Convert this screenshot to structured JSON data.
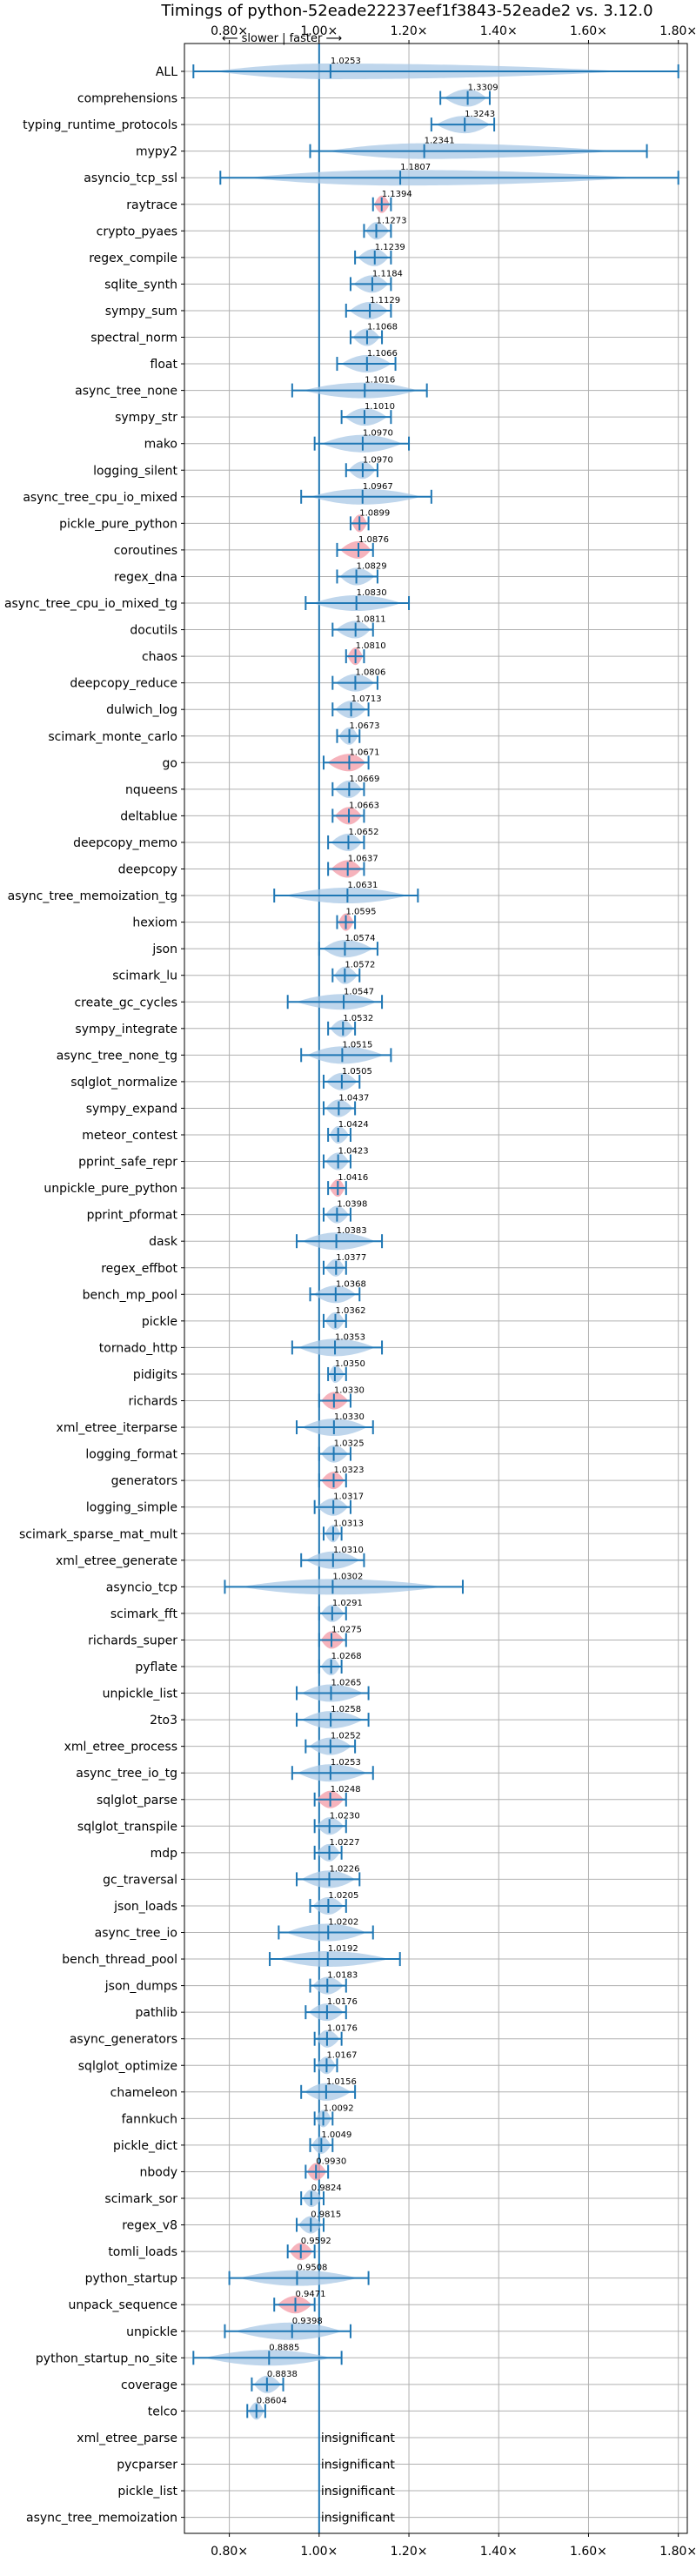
{
  "chart_data": {
    "type": "violin",
    "title": "Timings of python-52eade22237eef1f3843-52eade2 vs. 3.12.0",
    "direction_hint": "⟵ slower | faster ⟶",
    "xlim": [
      0.7,
      1.82
    ],
    "x_ticks": [
      0.8,
      1.0,
      1.2,
      1.4,
      1.6,
      1.8
    ],
    "x_tick_labels": [
      "0.80×",
      "1.00×",
      "1.20×",
      "1.40×",
      "1.60×",
      "1.80×"
    ],
    "reference_line": 1.0,
    "insignificant_label": "insignificant",
    "colors": {
      "violin": "#aac8e6",
      "marker": "#1f77b4",
      "highlight": "#f4a6b0",
      "grid": "#b0b0b0"
    },
    "benchmarks": [
      {
        "name": "ALL",
        "value": 1.0253,
        "low": 0.72,
        "high": 1.8,
        "wide": true
      },
      {
        "name": "comprehensions",
        "value": 1.3309,
        "low": 1.27,
        "high": 1.38
      },
      {
        "name": "typing_runtime_protocols",
        "value": 1.3243,
        "low": 1.25,
        "high": 1.39
      },
      {
        "name": "mypy2",
        "value": 1.2341,
        "low": 0.98,
        "high": 1.73,
        "wide": true
      },
      {
        "name": "asyncio_tcp_ssl",
        "value": 1.1807,
        "low": 0.78,
        "high": 1.8,
        "wide": true
      },
      {
        "name": "raytrace",
        "value": 1.1394,
        "low": 1.12,
        "high": 1.16,
        "hl": true
      },
      {
        "name": "crypto_pyaes",
        "value": 1.1273,
        "low": 1.1,
        "high": 1.16
      },
      {
        "name": "regex_compile",
        "value": 1.1239,
        "low": 1.08,
        "high": 1.16
      },
      {
        "name": "sqlite_synth",
        "value": 1.1184,
        "low": 1.07,
        "high": 1.16
      },
      {
        "name": "sympy_sum",
        "value": 1.1129,
        "low": 1.06,
        "high": 1.16
      },
      {
        "name": "spectral_norm",
        "value": 1.1068,
        "low": 1.07,
        "high": 1.14
      },
      {
        "name": "float",
        "value": 1.1066,
        "low": 1.04,
        "high": 1.17
      },
      {
        "name": "async_tree_none",
        "value": 1.1016,
        "low": 0.94,
        "high": 1.24,
        "wide": true
      },
      {
        "name": "sympy_str",
        "value": 1.101,
        "low": 1.05,
        "high": 1.16
      },
      {
        "name": "mako",
        "value": 1.097,
        "low": 0.99,
        "high": 1.2
      },
      {
        "name": "logging_silent",
        "value": 1.097,
        "low": 1.06,
        "high": 1.13
      },
      {
        "name": "async_tree_cpu_io_mixed",
        "value": 1.0967,
        "low": 0.96,
        "high": 1.25,
        "wide": true
      },
      {
        "name": "pickle_pure_python",
        "value": 1.0899,
        "low": 1.07,
        "high": 1.11,
        "hl": true
      },
      {
        "name": "coroutines",
        "value": 1.0876,
        "low": 1.04,
        "high": 1.12,
        "hl": true
      },
      {
        "name": "regex_dna",
        "value": 1.0829,
        "low": 1.04,
        "high": 1.13
      },
      {
        "name": "async_tree_cpu_io_mixed_tg",
        "value": 1.083,
        "low": 0.97,
        "high": 1.2,
        "wide": true
      },
      {
        "name": "docutils",
        "value": 1.0811,
        "low": 1.03,
        "high": 1.12
      },
      {
        "name": "chaos",
        "value": 1.081,
        "low": 1.06,
        "high": 1.1,
        "hl": true
      },
      {
        "name": "deepcopy_reduce",
        "value": 1.0806,
        "low": 1.03,
        "high": 1.13
      },
      {
        "name": "dulwich_log",
        "value": 1.0713,
        "low": 1.03,
        "high": 1.11
      },
      {
        "name": "scimark_monte_carlo",
        "value": 1.0673,
        "low": 1.04,
        "high": 1.09
      },
      {
        "name": "go",
        "value": 1.0671,
        "low": 1.01,
        "high": 1.11,
        "hl": true
      },
      {
        "name": "nqueens",
        "value": 1.0669,
        "low": 1.03,
        "high": 1.1
      },
      {
        "name": "deltablue",
        "value": 1.0663,
        "low": 1.03,
        "high": 1.1,
        "hl": true
      },
      {
        "name": "deepcopy_memo",
        "value": 1.0652,
        "low": 1.02,
        "high": 1.1
      },
      {
        "name": "deepcopy",
        "value": 1.0637,
        "low": 1.02,
        "high": 1.1,
        "hl": true
      },
      {
        "name": "async_tree_memoization_tg",
        "value": 1.0631,
        "low": 0.9,
        "high": 1.22,
        "wide": true
      },
      {
        "name": "hexiom",
        "value": 1.0595,
        "low": 1.04,
        "high": 1.08,
        "hl": true
      },
      {
        "name": "json",
        "value": 1.0574,
        "low": 1.0,
        "high": 1.13
      },
      {
        "name": "scimark_lu",
        "value": 1.0572,
        "low": 1.03,
        "high": 1.09
      },
      {
        "name": "create_gc_cycles",
        "value": 1.0547,
        "low": 0.93,
        "high": 1.14,
        "wide": true
      },
      {
        "name": "sympy_integrate",
        "value": 1.0532,
        "low": 1.02,
        "high": 1.08
      },
      {
        "name": "async_tree_none_tg",
        "value": 1.0515,
        "low": 0.96,
        "high": 1.16
      },
      {
        "name": "sqlglot_normalize",
        "value": 1.0505,
        "low": 1.01,
        "high": 1.09
      },
      {
        "name": "sympy_expand",
        "value": 1.0437,
        "low": 1.01,
        "high": 1.08
      },
      {
        "name": "meteor_contest",
        "value": 1.0424,
        "low": 1.02,
        "high": 1.07
      },
      {
        "name": "pprint_safe_repr",
        "value": 1.0423,
        "low": 1.01,
        "high": 1.07
      },
      {
        "name": "unpickle_pure_python",
        "value": 1.0416,
        "low": 1.02,
        "high": 1.06,
        "hl": true
      },
      {
        "name": "pprint_pformat",
        "value": 1.0398,
        "low": 1.01,
        "high": 1.07
      },
      {
        "name": "dask",
        "value": 1.0383,
        "low": 0.95,
        "high": 1.14
      },
      {
        "name": "regex_effbot",
        "value": 1.0377,
        "low": 1.01,
        "high": 1.06
      },
      {
        "name": "bench_mp_pool",
        "value": 1.0368,
        "low": 0.98,
        "high": 1.09
      },
      {
        "name": "pickle",
        "value": 1.0362,
        "low": 1.01,
        "high": 1.06
      },
      {
        "name": "tornado_http",
        "value": 1.0353,
        "low": 0.94,
        "high": 1.14
      },
      {
        "name": "pidigits",
        "value": 1.035,
        "low": 1.02,
        "high": 1.06
      },
      {
        "name": "richards",
        "value": 1.033,
        "low": 1.0,
        "high": 1.07,
        "hl": true
      },
      {
        "name": "xml_etree_iterparse",
        "value": 1.033,
        "low": 0.95,
        "high": 1.12
      },
      {
        "name": "logging_format",
        "value": 1.0325,
        "low": 1.0,
        "high": 1.07
      },
      {
        "name": "generators",
        "value": 1.0323,
        "low": 1.0,
        "high": 1.06,
        "hl": true
      },
      {
        "name": "logging_simple",
        "value": 1.0317,
        "low": 0.99,
        "high": 1.07
      },
      {
        "name": "scimark_sparse_mat_mult",
        "value": 1.0313,
        "low": 1.01,
        "high": 1.05
      },
      {
        "name": "xml_etree_generate",
        "value": 1.031,
        "low": 0.96,
        "high": 1.1
      },
      {
        "name": "asyncio_tcp",
        "value": 1.0302,
        "low": 0.79,
        "high": 1.32,
        "wide": true
      },
      {
        "name": "scimark_fft",
        "value": 1.0291,
        "low": 1.0,
        "high": 1.06
      },
      {
        "name": "richards_super",
        "value": 1.0275,
        "low": 1.0,
        "high": 1.06,
        "hl": true
      },
      {
        "name": "pyflate",
        "value": 1.0268,
        "low": 1.0,
        "high": 1.05
      },
      {
        "name": "unpickle_list",
        "value": 1.0265,
        "low": 0.95,
        "high": 1.11
      },
      {
        "name": "2to3",
        "value": 1.0258,
        "low": 0.95,
        "high": 1.11
      },
      {
        "name": "xml_etree_process",
        "value": 1.0252,
        "low": 0.97,
        "high": 1.08
      },
      {
        "name": "async_tree_io_tg",
        "value": 1.0253,
        "low": 0.94,
        "high": 1.12
      },
      {
        "name": "sqlglot_parse",
        "value": 1.0248,
        "low": 0.99,
        "high": 1.06,
        "hl": true
      },
      {
        "name": "sqlglot_transpile",
        "value": 1.023,
        "low": 0.99,
        "high": 1.06
      },
      {
        "name": "mdp",
        "value": 1.0227,
        "low": 0.99,
        "high": 1.05
      },
      {
        "name": "gc_traversal",
        "value": 1.0226,
        "low": 0.95,
        "high": 1.09
      },
      {
        "name": "json_loads",
        "value": 1.0205,
        "low": 0.98,
        "high": 1.06
      },
      {
        "name": "async_tree_io",
        "value": 1.0202,
        "low": 0.91,
        "high": 1.12
      },
      {
        "name": "bench_thread_pool",
        "value": 1.0192,
        "low": 0.89,
        "high": 1.18,
        "wide": true
      },
      {
        "name": "json_dumps",
        "value": 1.0183,
        "low": 0.98,
        "high": 1.06
      },
      {
        "name": "pathlib",
        "value": 1.0176,
        "low": 0.97,
        "high": 1.06
      },
      {
        "name": "async_generators",
        "value": 1.0176,
        "low": 0.99,
        "high": 1.05
      },
      {
        "name": "sqlglot_optimize",
        "value": 1.0167,
        "low": 0.99,
        "high": 1.04
      },
      {
        "name": "chameleon",
        "value": 1.0156,
        "low": 0.96,
        "high": 1.08
      },
      {
        "name": "fannkuch",
        "value": 1.0092,
        "low": 0.99,
        "high": 1.03
      },
      {
        "name": "pickle_dict",
        "value": 1.0049,
        "low": 0.98,
        "high": 1.03
      },
      {
        "name": "nbody",
        "value": 0.993,
        "low": 0.97,
        "high": 1.02,
        "hl": true
      },
      {
        "name": "scimark_sor",
        "value": 0.9824,
        "low": 0.96,
        "high": 1.01
      },
      {
        "name": "regex_v8",
        "value": 0.9815,
        "low": 0.95,
        "high": 1.01
      },
      {
        "name": "tomli_loads",
        "value": 0.9592,
        "low": 0.93,
        "high": 0.99,
        "hl": true
      },
      {
        "name": "python_startup",
        "value": 0.9508,
        "low": 0.8,
        "high": 1.11,
        "wide": true
      },
      {
        "name": "unpack_sequence",
        "value": 0.9471,
        "low": 0.9,
        "high": 0.99,
        "hl": true
      },
      {
        "name": "unpickle",
        "value": 0.9398,
        "low": 0.79,
        "high": 1.07
      },
      {
        "name": "python_startup_no_site",
        "value": 0.8885,
        "low": 0.72,
        "high": 1.05,
        "wide": true
      },
      {
        "name": "coverage",
        "value": 0.8838,
        "low": 0.85,
        "high": 0.92
      },
      {
        "name": "telco",
        "value": 0.8604,
        "low": 0.84,
        "high": 0.88
      },
      {
        "name": "xml_etree_parse",
        "insignificant": true
      },
      {
        "name": "pycparser",
        "insignificant": true
      },
      {
        "name": "pickle_list",
        "insignificant": true
      },
      {
        "name": "async_tree_memoization",
        "insignificant": true
      }
    ]
  }
}
